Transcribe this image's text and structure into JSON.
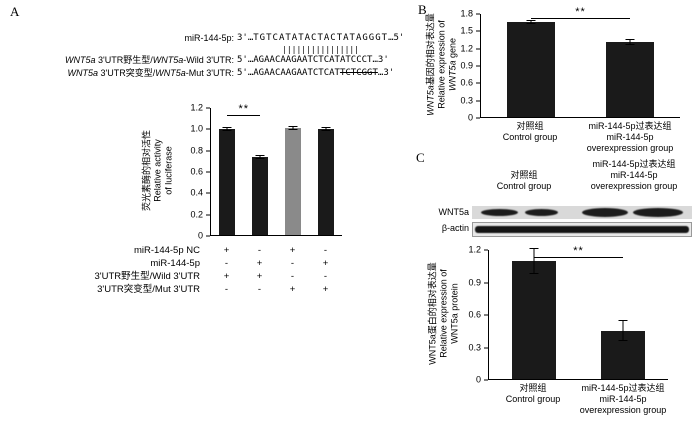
{
  "chart_data": [
    {
      "name": "luciferase-reporter-assay",
      "type": "bar",
      "categories": [
        "miR-144-5p NC + Wild 3'UTR",
        "miR-144-5p + Wild 3'UTR",
        "miR-144-5p NC + Mut 3'UTR",
        "miR-144-5p + Mut 3'UTR"
      ],
      "values": [
        1.0,
        0.74,
        1.01,
        1.0
      ],
      "errors": [
        0.02,
        0.02,
        0.02,
        0.02
      ],
      "colors": [
        "#1a1a1a",
        "#1a1a1a",
        "#8a8a8a",
        "#1a1a1a"
      ],
      "ylim": [
        0,
        1.2
      ],
      "yticks": [
        "0",
        "0.2",
        "0.4",
        "0.6",
        "0.8",
        "1.0",
        "1.2"
      ],
      "ylabel": [
        [
          {
            "t": "荧光素酶的相对活性"
          }
        ],
        [
          {
            "t": "Relative activity"
          }
        ],
        [
          {
            "t": "of luciferase"
          }
        ]
      ],
      "sig": {
        "from": 0,
        "to": 1,
        "label": "**",
        "y": 1.12
      }
    },
    {
      "name": "wnt5a-mrna-expression",
      "type": "bar",
      "categories": [
        "对照组 Control group",
        "miR-144-5p过表达组 miR-144-5p overexpression group"
      ],
      "values": [
        1.66,
        1.31
      ],
      "errors": [
        0.04,
        0.05
      ],
      "colors": [
        "#1a1a1a",
        "#1a1a1a"
      ],
      "ylim": [
        0,
        1.8
      ],
      "yticks": [
        "0",
        "0.3",
        "0.6",
        "0.9",
        "1.2",
        "1.5",
        "1.8"
      ],
      "ylabel": [
        [
          {
            "t": "WNT5a",
            "st": "i"
          },
          {
            "t": "基因的相对表达量"
          }
        ],
        [
          {
            "t": "Relative expression of"
          }
        ],
        [
          {
            "t": "WNT5a",
            "st": "i"
          },
          {
            "t": " gene"
          }
        ]
      ],
      "xlabels": [
        [
          "对照组",
          "Control group"
        ],
        [
          "miR-144-5p过表达组",
          "miR-144-5p",
          "overexpression group"
        ]
      ],
      "sig": {
        "from": 0,
        "to": 1,
        "label": "**",
        "y": 1.72
      }
    },
    {
      "name": "wnt5a-protein-expression",
      "type": "bar",
      "categories": [
        "对照组 Control group",
        "miR-144-5p过表达组 miR-144-5p overexpression group"
      ],
      "values": [
        1.1,
        0.45
      ],
      "errors": [
        0.12,
        0.1
      ],
      "colors": [
        "#1a1a1a",
        "#1a1a1a"
      ],
      "ylim": [
        0,
        1.2
      ],
      "yticks": [
        "0",
        "0.3",
        "0.6",
        "0.9",
        "1.2"
      ],
      "ylabel": [
        [
          {
            "t": "WNT5a蛋白的相对表达量"
          }
        ],
        [
          {
            "t": "Relative expression of"
          }
        ],
        [
          {
            "t": "WNT5a protein"
          }
        ]
      ],
      "xlabels": [
        [
          "对照组",
          "Control group"
        ],
        [
          "miR-144-5p过表达组",
          "miR-144-5p",
          "overexpression group"
        ]
      ],
      "sig": {
        "from": 0,
        "to": 1,
        "label": "**",
        "y": 1.13
      }
    }
  ],
  "panelA": {
    "label": "A",
    "alignment": {
      "mir_label": [
        {
          "t": "miR-144-5p:"
        }
      ],
      "mir_seq": [
        {
          "t": "3'"
        },
        {
          "t": "…"
        },
        {
          "t": "TGTCATATACTACTATAGGGT",
          "st": "sp"
        },
        {
          "t": "…5'"
        }
      ],
      "pipes": "||||||||||||||||",
      "wild_label": [
        {
          "t": "WNT5a",
          "st": "i"
        },
        {
          "t": " 3'UTR野生型/"
        },
        {
          "t": "WNT5a",
          "st": "i"
        },
        {
          "t": "-Wild 3'UTR:"
        }
      ],
      "wild_seq": [
        {
          "t": "5'"
        },
        {
          "t": "…"
        },
        {
          "t": "AGAACAAGAATCTCATATCCCT"
        },
        {
          "t": "…3'"
        }
      ],
      "mut_label": [
        {
          "t": "WNT5a",
          "st": "i"
        },
        {
          "t": " 3'UTR突变型/"
        },
        {
          "t": "WNT5a",
          "st": "i"
        },
        {
          "t": "-Mut 3'UTR:"
        }
      ],
      "mut_seq": [
        {
          "t": "5'"
        },
        {
          "t": "…"
        },
        {
          "t": "AGAACAAGAATCTCAT"
        },
        {
          "t": "TCTCGGT",
          "st": "s"
        },
        {
          "t": "…3'"
        }
      ]
    },
    "conditions": {
      "rows": [
        {
          "label": "miR-144-5p NC",
          "values": [
            "+",
            "-",
            "+",
            "-"
          ]
        },
        {
          "label": "miR-144-5p",
          "values": [
            "-",
            "+",
            "-",
            "+"
          ]
        },
        {
          "label": "3'UTR野生型/Wild 3'UTR",
          "values": [
            "+",
            "+",
            "-",
            "-"
          ]
        },
        {
          "label": "3'UTR突变型/Mut 3'UTR",
          "values": [
            "-",
            "-",
            "+",
            "+"
          ]
        }
      ]
    }
  },
  "panelB": {
    "label": "B"
  },
  "panelC": {
    "label": "C",
    "blot": {
      "groups": [
        [
          "对照组",
          "Control group"
        ],
        [
          "miR-144-5p过表达组",
          "miR-144-5p",
          "overexpression group"
        ]
      ],
      "row_labels": [
        "WNT5a",
        "β-actin"
      ]
    }
  }
}
